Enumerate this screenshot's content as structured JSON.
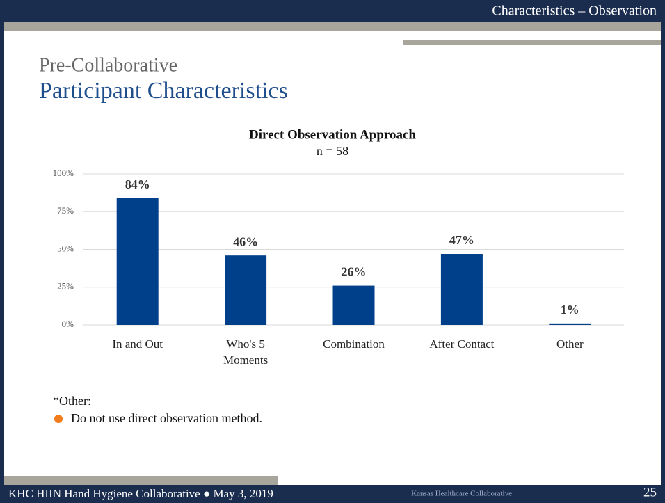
{
  "header": {
    "section": "Characteristics – Observation"
  },
  "title": {
    "kicker": "Pre-Collaborative",
    "main": "Participant Characteristics"
  },
  "chart_data": {
    "type": "bar",
    "title": "Direct Observation Approach",
    "subtitle": "n = 58",
    "categories": [
      "In and Out",
      "Who's 5 Moments",
      "Combination",
      "After Contact",
      "Other"
    ],
    "values": [
      84,
      46,
      26,
      47,
      1
    ],
    "value_labels": [
      "84%",
      "46%",
      "26%",
      "47%",
      "1%"
    ],
    "color": "#003f8a",
    "ylim": [
      0,
      100
    ],
    "yticks": [
      {
        "value": 0,
        "label": "0%"
      },
      {
        "value": 25,
        "label": "25%"
      },
      {
        "value": 50,
        "label": "50%"
      },
      {
        "value": 75,
        "label": "75%"
      },
      {
        "value": 100,
        "label": "100%"
      }
    ],
    "grid": true
  },
  "notes": {
    "heading": "*Other:",
    "items": [
      "Do not use direct observation method."
    ]
  },
  "footer": {
    "left": "KHC HIIN Hand Hygiene Collaborative ● May 3, 2019",
    "org": "Kansas Healthcare Collaborative",
    "page": "25"
  }
}
